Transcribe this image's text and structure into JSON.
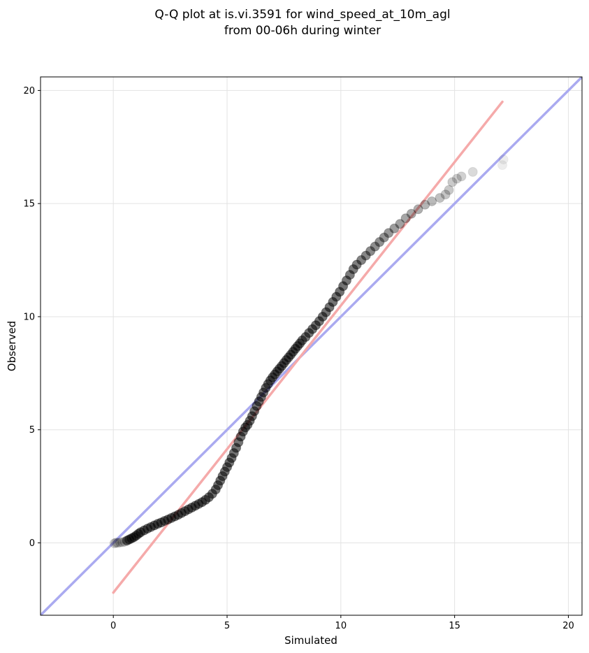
{
  "chart_data": {
    "type": "scatter",
    "title_lines": [
      "Q-Q plot at is.vi.3591 for wind_speed_at_10m_agl",
      "from 00-06h during winter"
    ],
    "xlabel": "Simulated",
    "ylabel": "Observed",
    "xlim": [
      -3.2,
      20.6
    ],
    "ylim": [
      -3.2,
      20.6
    ],
    "x_ticks": [
      0,
      5,
      10,
      15,
      20
    ],
    "y_ticks": [
      0,
      5,
      10,
      15,
      20
    ],
    "x_tick_labels": [
      "0",
      "5",
      "10",
      "15",
      "20"
    ],
    "y_tick_labels": [
      "0",
      "5",
      "10",
      "15",
      "20"
    ],
    "grid": true,
    "identity_line": {
      "color": "#aaaaf0",
      "from": [
        -3.2,
        -3.2
      ],
      "to": [
        20.6,
        20.6
      ]
    },
    "fit_line": {
      "color": "#f5aaaa",
      "from": [
        0,
        -2.2
      ],
      "to": [
        17.1,
        19.5
      ]
    },
    "marker_color": "#000000",
    "points": [
      [
        0.05,
        -0.02
      ],
      [
        0.12,
        0.01
      ],
      [
        0.2,
        0.0
      ],
      [
        0.3,
        0.02
      ],
      [
        0.4,
        0.03
      ],
      [
        0.5,
        0.05
      ],
      [
        0.6,
        0.1
      ],
      [
        0.7,
        0.15
      ],
      [
        0.8,
        0.2
      ],
      [
        0.9,
        0.25
      ],
      [
        1.0,
        0.32
      ],
      [
        1.1,
        0.4
      ],
      [
        1.2,
        0.47
      ],
      [
        1.35,
        0.55
      ],
      [
        1.5,
        0.63
      ],
      [
        1.65,
        0.7
      ],
      [
        1.8,
        0.77
      ],
      [
        1.95,
        0.84
      ],
      [
        2.1,
        0.9
      ],
      [
        2.25,
        0.97
      ],
      [
        2.4,
        1.03
      ],
      [
        2.55,
        1.1
      ],
      [
        2.7,
        1.17
      ],
      [
        2.85,
        1.24
      ],
      [
        3.0,
        1.32
      ],
      [
        3.15,
        1.4
      ],
      [
        3.3,
        1.48
      ],
      [
        3.45,
        1.56
      ],
      [
        3.6,
        1.64
      ],
      [
        3.75,
        1.72
      ],
      [
        3.9,
        1.8
      ],
      [
        4.05,
        1.9
      ],
      [
        4.2,
        2.02
      ],
      [
        4.35,
        2.17
      ],
      [
        4.5,
        2.36
      ],
      [
        4.6,
        2.55
      ],
      [
        4.7,
        2.75
      ],
      [
        4.8,
        2.95
      ],
      [
        4.9,
        3.15
      ],
      [
        5.0,
        3.35
      ],
      [
        5.1,
        3.55
      ],
      [
        5.2,
        3.75
      ],
      [
        5.3,
        3.97
      ],
      [
        5.4,
        4.2
      ],
      [
        5.5,
        4.45
      ],
      [
        5.6,
        4.7
      ],
      [
        5.7,
        4.92
      ],
      [
        5.8,
        5.1
      ],
      [
        5.9,
        5.22
      ],
      [
        6.0,
        5.4
      ],
      [
        6.1,
        5.6
      ],
      [
        6.2,
        5.82
      ],
      [
        6.3,
        6.05
      ],
      [
        6.4,
        6.25
      ],
      [
        6.5,
        6.45
      ],
      [
        6.6,
        6.65
      ],
      [
        6.7,
        6.85
      ],
      [
        6.8,
        7.02
      ],
      [
        6.9,
        7.18
      ],
      [
        7.0,
        7.32
      ],
      [
        7.1,
        7.45
      ],
      [
        7.2,
        7.58
      ],
      [
        7.3,
        7.7
      ],
      [
        7.4,
        7.82
      ],
      [
        7.5,
        7.95
      ],
      [
        7.6,
        8.08
      ],
      [
        7.7,
        8.2
      ],
      [
        7.8,
        8.32
      ],
      [
        7.9,
        8.45
      ],
      [
        8.0,
        8.58
      ],
      [
        8.1,
        8.7
      ],
      [
        8.2,
        8.82
      ],
      [
        8.3,
        8.95
      ],
      [
        8.45,
        9.1
      ],
      [
        8.6,
        9.28
      ],
      [
        8.75,
        9.45
      ],
      [
        8.9,
        9.62
      ],
      [
        9.05,
        9.8
      ],
      [
        9.2,
        10.0
      ],
      [
        9.35,
        10.2
      ],
      [
        9.5,
        10.42
      ],
      [
        9.65,
        10.65
      ],
      [
        9.8,
        10.88
      ],
      [
        9.95,
        11.1
      ],
      [
        10.1,
        11.35
      ],
      [
        10.25,
        11.6
      ],
      [
        10.4,
        11.85
      ],
      [
        10.55,
        12.1
      ],
      [
        10.7,
        12.3
      ],
      [
        10.9,
        12.5
      ],
      [
        11.1,
        12.7
      ],
      [
        11.3,
        12.9
      ],
      [
        11.5,
        13.1
      ],
      [
        11.7,
        13.3
      ],
      [
        11.9,
        13.5
      ],
      [
        12.1,
        13.7
      ],
      [
        12.35,
        13.9
      ],
      [
        12.6,
        14.1
      ],
      [
        12.85,
        14.35
      ],
      [
        13.1,
        14.55
      ],
      [
        13.4,
        14.75
      ],
      [
        13.7,
        14.95
      ],
      [
        14.0,
        15.1
      ],
      [
        14.35,
        15.25
      ],
      [
        14.6,
        15.4
      ],
      [
        14.75,
        15.6
      ],
      [
        14.9,
        15.95
      ],
      [
        15.1,
        16.1
      ],
      [
        15.3,
        16.2
      ],
      [
        15.8,
        16.4
      ],
      [
        17.1,
        16.7
      ],
      [
        17.15,
        16.95
      ]
    ]
  }
}
